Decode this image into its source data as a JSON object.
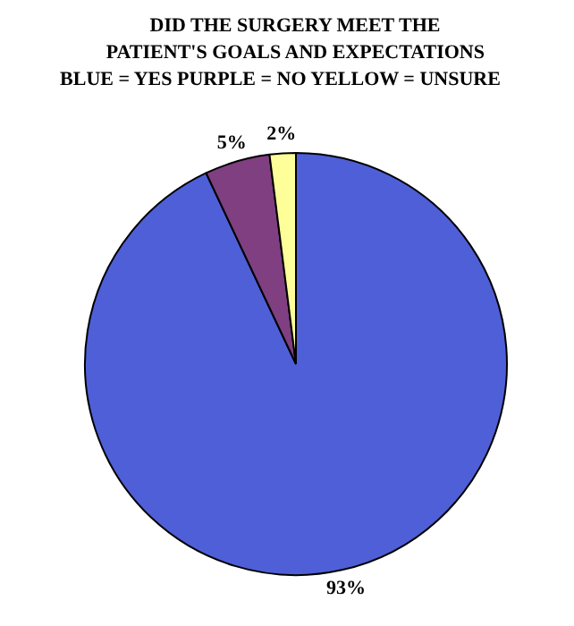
{
  "chart_data": {
    "type": "pie",
    "title": "DID THE SURGERY MEET THE\nPATIENT'S GOALS AND EXPECTATIONS",
    "subtitle": "BLUE = YES    PURPLE = NO    YELLOW = UNSURE",
    "categories": [
      null,
      null,
      null
    ],
    "values": [
      93,
      5,
      2
    ],
    "colors": [
      "#4f5fd8",
      "#7f3f80",
      "#ffff99"
    ],
    "value_labels": [
      "93%",
      "5%",
      "2%"
    ]
  }
}
